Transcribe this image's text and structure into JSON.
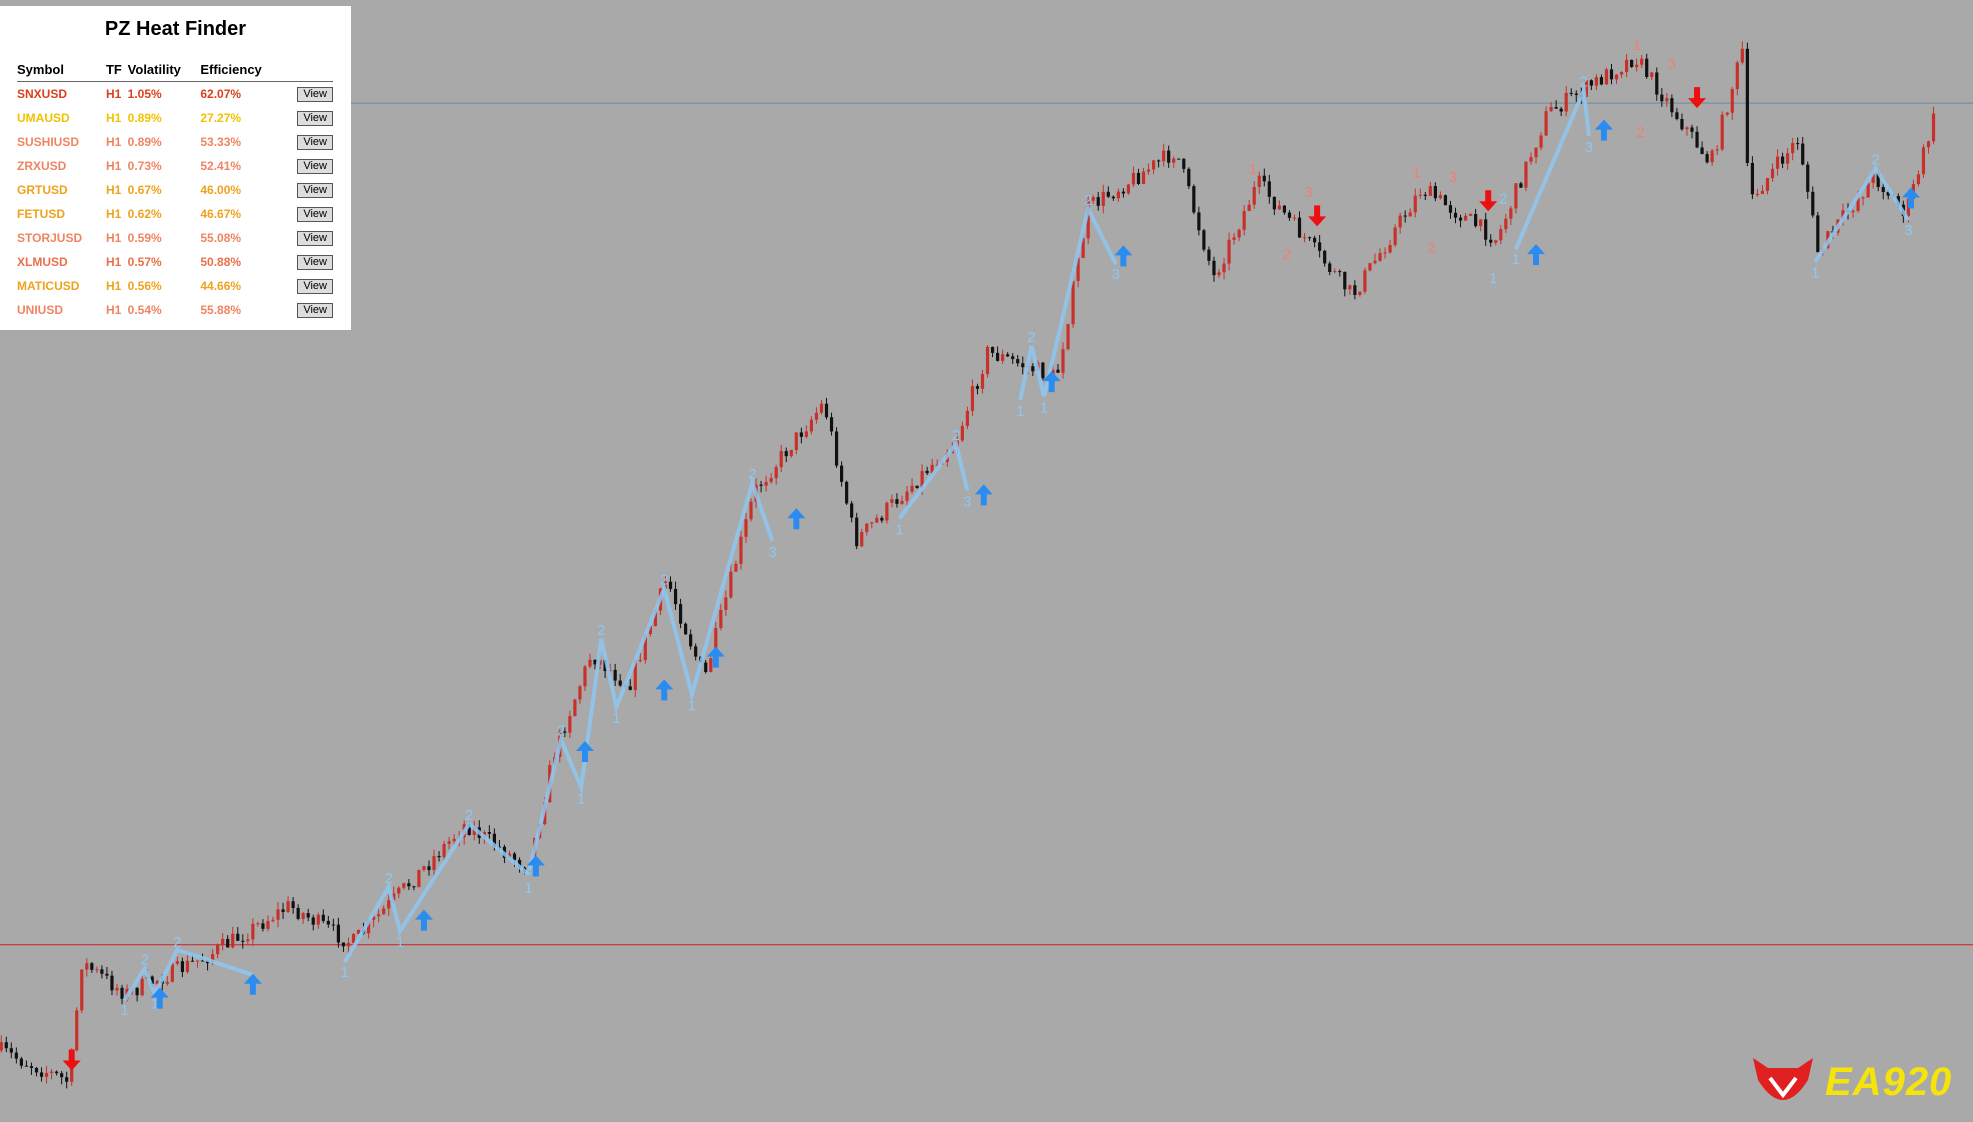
{
  "panel": {
    "title": "PZ Heat Finder",
    "columns": [
      "Symbol",
      "TF",
      "Volatility",
      "Efficiency"
    ],
    "rows": [
      {
        "symbol": "SNXUSD",
        "tf": "H1",
        "volatility": "1.05%",
        "efficiency": "62.07%",
        "button": "View",
        "color": "#d8401c"
      },
      {
        "symbol": "UMAUSD",
        "tf": "H1",
        "volatility": "0.89%",
        "efficiency": "27.27%",
        "button": "View",
        "color": "#f2c200"
      },
      {
        "symbol": "SUSHIUSD",
        "tf": "H1",
        "volatility": "0.89%",
        "efficiency": "53.33%",
        "button": "View",
        "color": "#ef8462"
      },
      {
        "symbol": "ZRXUSD",
        "tf": "H1",
        "volatility": "0.73%",
        "efficiency": "52.41%",
        "button": "View",
        "color": "#ef8462"
      },
      {
        "symbol": "GRTUSD",
        "tf": "H1",
        "volatility": "0.67%",
        "efficiency": "46.00%",
        "button": "View",
        "color": "#eea21e"
      },
      {
        "symbol": "FETUSD",
        "tf": "H1",
        "volatility": "0.62%",
        "efficiency": "46.67%",
        "button": "View",
        "color": "#eea21e"
      },
      {
        "symbol": "STORJUSD",
        "tf": "H1",
        "volatility": "0.59%",
        "efficiency": "55.08%",
        "button": "View",
        "color": "#ef8462"
      },
      {
        "symbol": "XLMUSD",
        "tf": "H1",
        "volatility": "0.57%",
        "efficiency": "50.88%",
        "button": "View",
        "color": "#e8704a"
      },
      {
        "symbol": "MATICUSD",
        "tf": "H1",
        "volatility": "0.56%",
        "efficiency": "44.66%",
        "button": "View",
        "color": "#eea21e"
      },
      {
        "symbol": "UNIUSD",
        "tf": "H1",
        "volatility": "0.54%",
        "efficiency": "55.88%",
        "button": "View",
        "color": "#ef8462"
      }
    ]
  },
  "chart": {
    "blue_color": "#8ec8f2",
    "red_color": "#f08070",
    "blue_labels": [
      "1",
      "2",
      "1",
      "2",
      "1",
      "2",
      "1",
      "2",
      "1",
      "2",
      "1",
      "2",
      "1",
      "2",
      "1",
      "2",
      "3",
      "1",
      "2",
      "3",
      "1",
      "2",
      "1",
      "2",
      "3",
      "2",
      "3",
      "2",
      "3",
      "1",
      "1",
      "2",
      "1"
    ],
    "red_labels": [
      "1",
      "3",
      "2",
      "1",
      "3",
      "2",
      "1",
      "3",
      "2"
    ]
  },
  "logo": {
    "text": "EA920"
  }
}
